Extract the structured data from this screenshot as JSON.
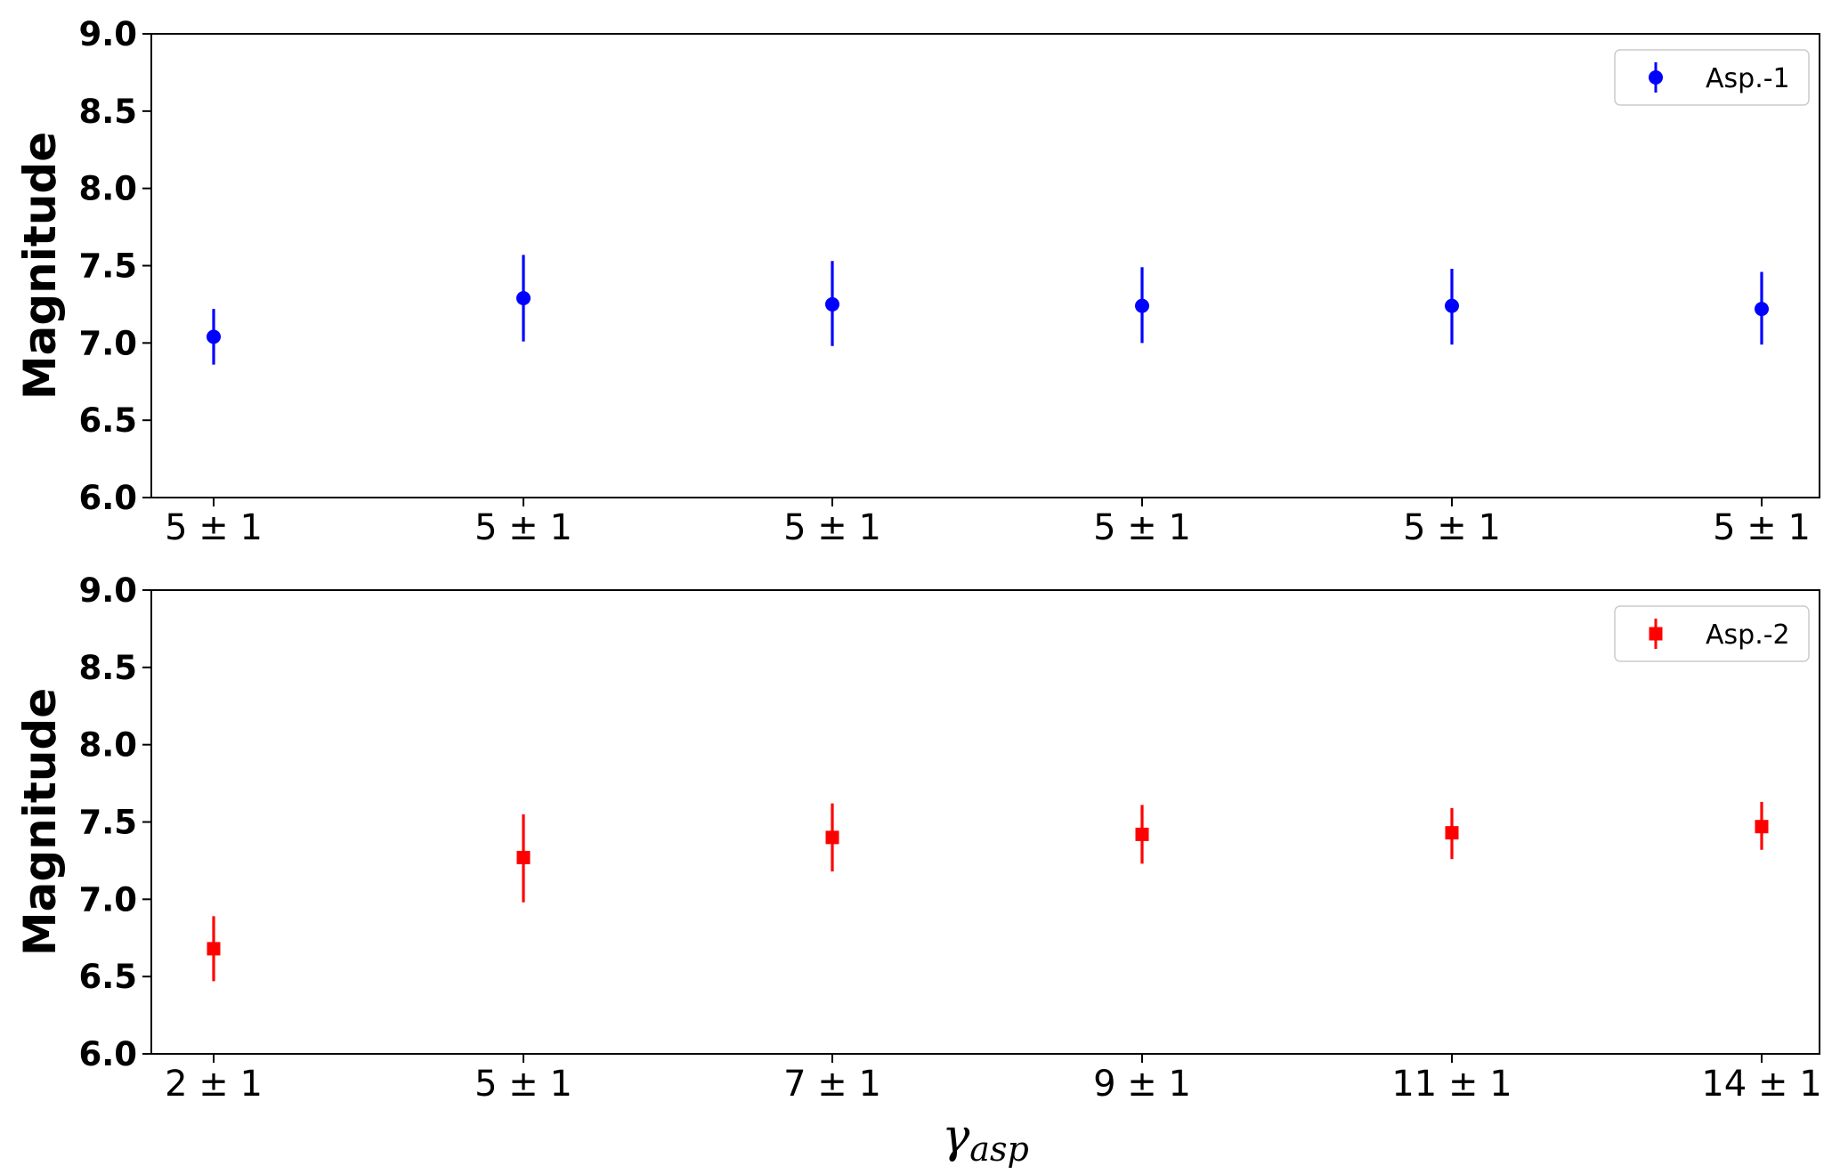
{
  "chart_data": [
    {
      "type": "scatter",
      "title": "",
      "ylabel": "Magnitude",
      "xlabel": "",
      "ylim": [
        6.0,
        9.0
      ],
      "yticks": [
        "6.0",
        "6.5",
        "7.0",
        "7.5",
        "8.0",
        "8.5",
        "9.0"
      ],
      "categories": [
        "5 ± 1",
        "5 ± 1",
        "5 ± 1",
        "5 ± 1",
        "5 ± 1",
        "5 ± 1"
      ],
      "legend_position": "top-right",
      "series": [
        {
          "name": "Asp.-1",
          "color": "#0000ff",
          "marker": "circle",
          "values": [
            7.04,
            7.29,
            7.25,
            7.24,
            7.24,
            7.22
          ],
          "error_low": [
            6.86,
            7.01,
            6.98,
            7.0,
            6.99,
            6.99
          ],
          "error_high": [
            7.22,
            7.57,
            7.53,
            7.49,
            7.48,
            7.46
          ]
        }
      ]
    },
    {
      "type": "scatter",
      "title": "",
      "ylabel": "Magnitude",
      "xlabel": "γasp",
      "ylim": [
        6.0,
        9.0
      ],
      "yticks": [
        "6.0",
        "6.5",
        "7.0",
        "7.5",
        "8.0",
        "8.5",
        "9.0"
      ],
      "categories": [
        "2 ± 1",
        "5 ± 1",
        "7 ± 1",
        "9 ± 1",
        "11 ± 1",
        "14 ± 1"
      ],
      "legend_position": "top-right",
      "series": [
        {
          "name": "Asp.-2",
          "color": "#ff0000",
          "marker": "square",
          "values": [
            6.68,
            7.27,
            7.4,
            7.42,
            7.43,
            7.47
          ],
          "error_low": [
            6.47,
            6.98,
            7.18,
            7.23,
            7.26,
            7.32
          ],
          "error_high": [
            6.89,
            7.55,
            7.62,
            7.61,
            7.59,
            7.63
          ]
        }
      ]
    }
  ]
}
